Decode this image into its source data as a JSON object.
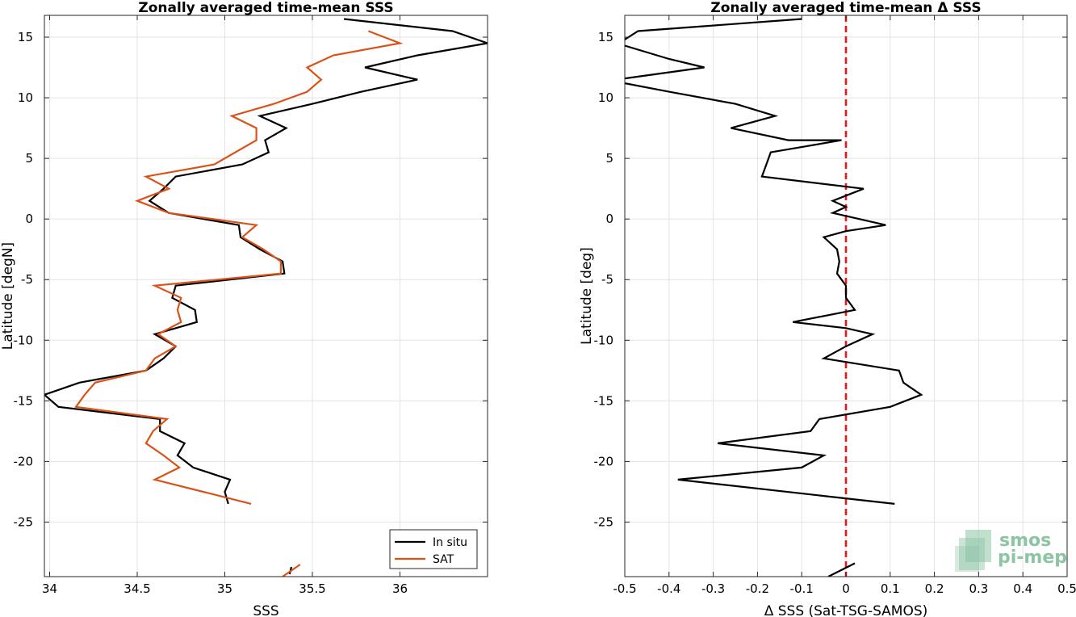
{
  "chart_data": [
    {
      "type": "line",
      "title": "Zonally averaged time-mean SSS",
      "xlabel": "SSS",
      "ylabel": "Latitude [degN]",
      "xlim": [
        33.97,
        36.5
      ],
      "ylim": [
        -29.5,
        16.8
      ],
      "xticks": [
        "34",
        "34.5",
        "35",
        "35.5",
        "36"
      ],
      "xtick_values": [
        34,
        34.5,
        35,
        35.5,
        36
      ],
      "yticks": [
        "15",
        "10",
        "5",
        "0",
        "-5",
        "-10",
        "-15",
        "-20",
        "-25"
      ],
      "ytick_values": [
        15,
        10,
        5,
        0,
        -5,
        -10,
        -15,
        -20,
        -25
      ],
      "grid": true,
      "legend_position": "bottom-right",
      "legend": [
        "In situ",
        "SAT"
      ],
      "series": [
        {
          "name": "In situ",
          "color": "#000000",
          "segments": [
            [
              [
                35.68,
                16.5
              ],
              [
                36.3,
                15.5
              ],
              [
                36.5,
                14.5
              ],
              [
                36.1,
                13.5
              ],
              [
                35.8,
                12.5
              ],
              [
                36.1,
                11.5
              ],
              [
                35.78,
                10.5
              ],
              [
                35.5,
                9.5
              ],
              [
                35.2,
                8.5
              ],
              [
                35.35,
                7.5
              ],
              [
                35.23,
                6.5
              ],
              [
                35.25,
                5.5
              ],
              [
                35.1,
                4.5
              ],
              [
                34.72,
                3.5
              ],
              [
                34.65,
                2.5
              ],
              [
                34.57,
                1.5
              ],
              [
                34.68,
                0.5
              ],
              [
                35.08,
                -0.5
              ],
              [
                35.09,
                -1.5
              ],
              [
                35.2,
                -2.5
              ],
              [
                35.33,
                -3.5
              ],
              [
                35.34,
                -4.5
              ],
              [
                34.72,
                -5.5
              ],
              [
                34.7,
                -6.5
              ],
              [
                34.83,
                -7.5
              ],
              [
                34.84,
                -8.5
              ],
              [
                34.6,
                -9.5
              ],
              [
                34.72,
                -10.5
              ],
              [
                34.65,
                -11.5
              ],
              [
                34.55,
                -12.5
              ],
              [
                34.17,
                -13.5
              ],
              [
                33.97,
                -14.5
              ],
              [
                34.05,
                -15.5
              ],
              [
                34.63,
                -16.5
              ],
              [
                34.63,
                -17.5
              ],
              [
                34.77,
                -18.5
              ],
              [
                34.73,
                -19.5
              ],
              [
                34.82,
                -20.5
              ],
              [
                35.03,
                -21.5
              ],
              [
                35.0,
                -22.5
              ],
              [
                35.02,
                -23.5
              ]
            ],
            [
              [
                35.37,
                -29.3
              ],
              [
                35.38,
                -28.7
              ]
            ]
          ]
        },
        {
          "name": "SAT",
          "color": "#D95319",
          "segments": [
            [
              [
                35.82,
                15.5
              ],
              [
                36.0,
                14.5
              ],
              [
                35.62,
                13.5
              ],
              [
                35.47,
                12.5
              ],
              [
                35.55,
                11.5
              ],
              [
                35.47,
                10.5
              ],
              [
                35.28,
                9.5
              ],
              [
                35.04,
                8.5
              ],
              [
                35.18,
                7.5
              ],
              [
                35.18,
                6.5
              ],
              [
                34.94,
                4.5
              ],
              [
                34.55,
                3.5
              ],
              [
                34.68,
                2.5
              ],
              [
                34.5,
                1.5
              ],
              [
                34.68,
                0.5
              ],
              [
                35.18,
                -0.5
              ],
              [
                35.1,
                -1.5
              ],
              [
                35.22,
                -2.5
              ],
              [
                35.32,
                -3.5
              ],
              [
                35.32,
                -4.5
              ],
              [
                34.6,
                -5.5
              ],
              [
                34.75,
                -6.5
              ],
              [
                34.73,
                -7.5
              ],
              [
                34.75,
                -8.5
              ],
              [
                34.62,
                -9.5
              ],
              [
                34.72,
                -10.5
              ],
              [
                34.6,
                -11.5
              ],
              [
                34.55,
                -12.5
              ],
              [
                34.26,
                -13.5
              ],
              [
                34.2,
                -14.5
              ],
              [
                34.15,
                -15.5
              ],
              [
                34.67,
                -16.5
              ],
              [
                34.59,
                -17.5
              ],
              [
                34.55,
                -18.5
              ],
              [
                34.65,
                -19.5
              ],
              [
                34.74,
                -20.5
              ],
              [
                34.6,
                -21.5
              ],
              [
                35.15,
                -23.5
              ]
            ],
            [
              [
                35.33,
                -29.5
              ],
              [
                35.43,
                -28.5
              ]
            ]
          ]
        }
      ]
    },
    {
      "type": "line",
      "title": "Zonally averaged time-mean Δ SSS",
      "xlabel": "Δ SSS (Sat-TSG-SAMOS)",
      "ylabel": "Latitude [deg]",
      "xlim": [
        -0.5,
        0.5
      ],
      "ylim": [
        -29.5,
        16.8
      ],
      "xticks": [
        "-0.5",
        "-0.4",
        "-0.3",
        "-0.2",
        "-0.1",
        "0",
        "0.1",
        "0.2",
        "0.3",
        "0.4",
        "0.5"
      ],
      "xtick_values": [
        -0.5,
        -0.4,
        -0.3,
        -0.2,
        -0.1,
        0,
        0.1,
        0.2,
        0.3,
        0.4,
        0.5
      ],
      "yticks": [
        "15",
        "10",
        "5",
        "0",
        "-5",
        "-10",
        "-15",
        "-20",
        "-25"
      ],
      "ytick_values": [
        15,
        10,
        5,
        0,
        -5,
        -10,
        -15,
        -20,
        -25
      ],
      "grid": true,
      "reference_line": {
        "x": 0,
        "color": "#E41A1C",
        "style": "dashed"
      },
      "series": [
        {
          "color": "#000000",
          "segments": [
            [
              [
                -0.1,
                16.5
              ],
              [
                -0.47,
                15.5
              ],
              [
                -0.5,
                14.8
              ]
            ],
            [
              [
                -0.5,
                14.3
              ],
              [
                -0.4,
                13.2
              ],
              [
                -0.32,
                12.5
              ],
              [
                -0.5,
                11.6
              ]
            ],
            [
              [
                -0.5,
                11.2
              ],
              [
                -0.4,
                10.5
              ],
              [
                -0.25,
                9.5
              ],
              [
                -0.16,
                8.5
              ],
              [
                -0.26,
                7.5
              ],
              [
                -0.13,
                6.5
              ],
              [
                -0.01,
                6.5
              ],
              [
                -0.17,
                5.5
              ],
              [
                -0.18,
                4.5
              ],
              [
                -0.19,
                3.5
              ],
              [
                0.04,
                2.5
              ],
              [
                -0.03,
                1.5
              ],
              [
                0.0,
                1.0
              ],
              [
                -0.03,
                0.5
              ],
              [
                0.09,
                -0.5
              ],
              [
                0.0,
                -1.0
              ],
              [
                -0.05,
                -1.5
              ],
              [
                -0.02,
                -2.5
              ],
              [
                -0.015,
                -3.5
              ],
              [
                -0.02,
                -4.5
              ],
              [
                0.0,
                -5.5
              ],
              [
                0.0,
                -6.5
              ],
              [
                0.02,
                -7.5
              ],
              [
                -0.12,
                -8.5
              ],
              [
                0.0,
                -9.0
              ],
              [
                0.06,
                -9.5
              ],
              [
                0.0,
                -10.5
              ],
              [
                -0.05,
                -11.5
              ],
              [
                0.12,
                -12.5
              ],
              [
                0.13,
                -13.5
              ],
              [
                0.17,
                -14.5
              ],
              [
                0.1,
                -15.5
              ],
              [
                -0.06,
                -16.5
              ],
              [
                -0.08,
                -17.5
              ],
              [
                -0.29,
                -18.5
              ],
              [
                -0.05,
                -19.5
              ],
              [
                -0.1,
                -20.5
              ],
              [
                -0.38,
                -21.5
              ],
              [
                0.11,
                -23.5
              ]
            ],
            [
              [
                -0.04,
                -29.5
              ],
              [
                0.02,
                -28.4
              ]
            ]
          ]
        }
      ]
    }
  ],
  "logo": {
    "line1": "smos",
    "line2": "pi-mep",
    "color": "#8CC4A4"
  }
}
